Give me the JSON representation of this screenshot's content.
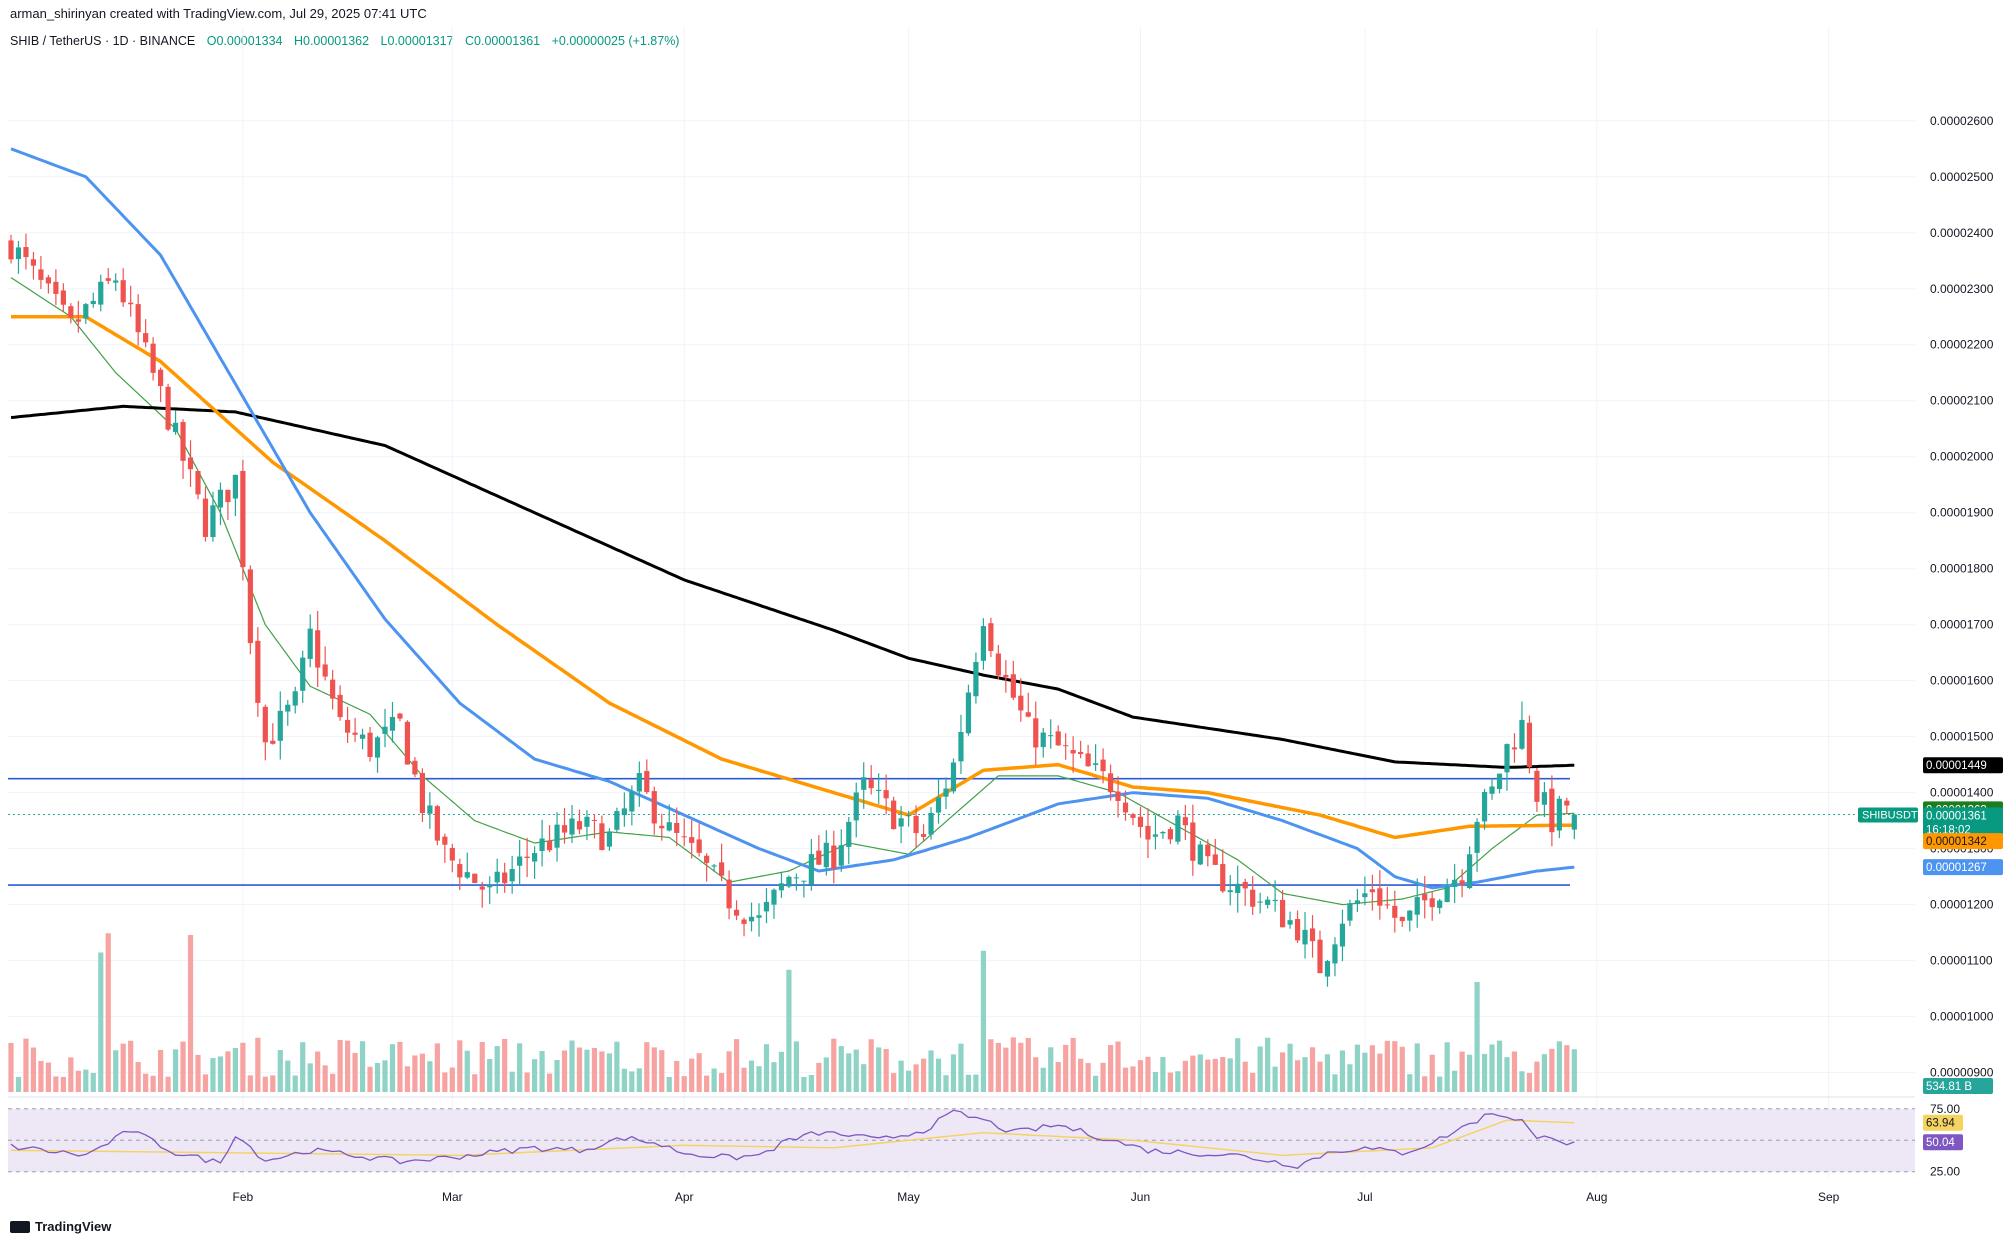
{
  "header": {
    "credit": "arman_shirinyan created with TradingView.com, Jul 29, 2025 07:41 UTC",
    "symbol_line": "SHIB / TetherUS · 1D · BINANCE",
    "open": "O0.00001334",
    "high": "H0.00001362",
    "low": "L0.00001317",
    "close": "C0.00001361",
    "change": "+0.00000025 (+1.87%)"
  },
  "footer": {
    "brand": "TradingView"
  },
  "colors": {
    "up": "#26a69a",
    "down": "#ef5350",
    "up_vol": "#8fd3c7",
    "down_vol": "#f6a3a2",
    "ma_black": "#000000",
    "ma_orange": "#ff9800",
    "ma_blue": "#4d94f0",
    "ma_green": "#43a047",
    "hline": "#2a5bd7",
    "rsi_line": "#7e57c2",
    "rsi_ma": "#f4d35e",
    "rsi_band": "#ede7f6"
  },
  "chart_data": {
    "type": "candlestick",
    "symbol": "SHIBUSDT",
    "x_ticks": [
      "Feb",
      "Mar",
      "Apr",
      "May",
      "Jun",
      "Jul",
      "Aug",
      "Sep"
    ],
    "y_ticks": [
      "0.00002600",
      "0.00002500",
      "0.00002400",
      "0.00002300",
      "0.00002200",
      "0.00002100",
      "0.00002000",
      "0.00001900",
      "0.00001800",
      "0.00001700",
      "0.00001600",
      "0.00001500",
      "0.00001400",
      "0.00001300",
      "0.00001200",
      "0.00001100",
      "0.00001000",
      "0.00000900"
    ],
    "ylim": [
      8.6e-06,
      2.73e-05
    ],
    "horizontal_lines": [
      1.425e-05,
      1.235e-05
    ],
    "price_tags": {
      "ma200": "0.00001449",
      "ma20": "0.00001363",
      "last_symbol": "SHIBUSDT",
      "last_price": "0.00001361",
      "countdown": "16:18:02",
      "ma100": "0.00001342",
      "ma50": "0.00001267",
      "volume": "534.81 B"
    },
    "rsi": {
      "upper": "75.00",
      "lower": "25.00",
      "ma_value": "63.94",
      "value": "50.04",
      "ylim": [
        20,
        82
      ]
    },
    "start_date": "2025-01-01",
    "close_knots": [
      [
        0,
        23.8
      ],
      [
        8,
        22.3
      ],
      [
        14,
        23.2
      ],
      [
        20,
        21.1
      ],
      [
        26,
        18.8
      ],
      [
        30,
        19.6
      ],
      [
        32,
        16.8
      ],
      [
        34,
        14.9
      ],
      [
        38,
        15.6
      ],
      [
        40,
        16.8
      ],
      [
        44,
        15.2
      ],
      [
        48,
        14.8
      ],
      [
        52,
        15.2
      ],
      [
        55,
        13.8
      ],
      [
        58,
        12.9
      ],
      [
        64,
        12.2
      ],
      [
        70,
        13.0
      ],
      [
        76,
        13.4
      ],
      [
        80,
        13.2
      ],
      [
        84,
        14.1
      ],
      [
        88,
        13.3
      ],
      [
        92,
        12.8
      ],
      [
        96,
        12.1
      ],
      [
        100,
        11.7
      ],
      [
        104,
        12.5
      ],
      [
        110,
        12.9
      ],
      [
        114,
        14.1
      ],
      [
        118,
        13.6
      ],
      [
        122,
        13.2
      ],
      [
        126,
        14.5
      ],
      [
        130,
        17.2
      ],
      [
        132,
        16.3
      ],
      [
        136,
        15.1
      ],
      [
        140,
        14.8
      ],
      [
        144,
        14.4
      ],
      [
        148,
        14.1
      ],
      [
        152,
        13.2
      ],
      [
        156,
        13.5
      ],
      [
        160,
        12.6
      ],
      [
        164,
        12.3
      ],
      [
        168,
        12.0
      ],
      [
        172,
        11.6
      ],
      [
        175,
        10.9
      ],
      [
        178,
        11.8
      ],
      [
        182,
        12.3
      ],
      [
        186,
        11.6
      ],
      [
        190,
        12.2
      ],
      [
        194,
        12.6
      ],
      [
        196,
        13.6
      ],
      [
        198,
        14.0
      ],
      [
        200,
        14.8
      ],
      [
        202,
        15.2
      ],
      [
        204,
        14.0
      ],
      [
        206,
        13.5
      ],
      [
        208,
        13.8
      ],
      [
        209,
        13.61
      ]
    ],
    "ma200": [
      [
        0,
        20.7
      ],
      [
        15,
        20.9
      ],
      [
        30,
        20.8
      ],
      [
        50,
        20.2
      ],
      [
        70,
        19.0
      ],
      [
        90,
        17.8
      ],
      [
        110,
        16.9
      ],
      [
        120,
        16.4
      ],
      [
        130,
        16.1
      ],
      [
        140,
        15.85
      ],
      [
        150,
        15.35
      ],
      [
        170,
        14.95
      ],
      [
        185,
        14.55
      ],
      [
        200,
        14.45
      ],
      [
        209,
        14.49
      ]
    ],
    "ma100": [
      [
        0,
        22.5
      ],
      [
        10,
        22.5
      ],
      [
        20,
        21.7
      ],
      [
        35,
        19.9
      ],
      [
        50,
        18.5
      ],
      [
        65,
        17.0
      ],
      [
        80,
        15.6
      ],
      [
        95,
        14.6
      ],
      [
        110,
        14.0
      ],
      [
        120,
        13.6
      ],
      [
        130,
        14.4
      ],
      [
        140,
        14.5
      ],
      [
        150,
        14.1
      ],
      [
        160,
        14.0
      ],
      [
        175,
        13.6
      ],
      [
        185,
        13.2
      ],
      [
        195,
        13.4
      ],
      [
        209,
        13.42
      ]
    ],
    "ma50": [
      [
        0,
        25.5
      ],
      [
        10,
        25.0
      ],
      [
        20,
        23.6
      ],
      [
        30,
        21.3
      ],
      [
        40,
        19.0
      ],
      [
        50,
        17.1
      ],
      [
        60,
        15.6
      ],
      [
        70,
        14.6
      ],
      [
        80,
        14.2
      ],
      [
        90,
        13.6
      ],
      [
        100,
        13.0
      ],
      [
        108,
        12.6
      ],
      [
        118,
        12.8
      ],
      [
        128,
        13.2
      ],
      [
        140,
        13.8
      ],
      [
        150,
        14.0
      ],
      [
        160,
        13.9
      ],
      [
        170,
        13.5
      ],
      [
        180,
        13.0
      ],
      [
        185,
        12.5
      ],
      [
        190,
        12.3
      ],
      [
        196,
        12.4
      ],
      [
        204,
        12.6
      ],
      [
        209,
        12.67
      ]
    ],
    "ma20": [
      [
        0,
        23.2
      ],
      [
        8,
        22.5
      ],
      [
        14,
        21.5
      ],
      [
        22,
        20.5
      ],
      [
        28,
        19.0
      ],
      [
        34,
        17.0
      ],
      [
        40,
        15.9
      ],
      [
        48,
        15.4
      ],
      [
        55,
        14.3
      ],
      [
        62,
        13.5
      ],
      [
        70,
        13.1
      ],
      [
        80,
        13.3
      ],
      [
        88,
        13.2
      ],
      [
        96,
        12.4
      ],
      [
        104,
        12.6
      ],
      [
        112,
        13.1
      ],
      [
        120,
        12.9
      ],
      [
        126,
        13.6
      ],
      [
        132,
        14.3
      ],
      [
        140,
        14.3
      ],
      [
        148,
        14.0
      ],
      [
        156,
        13.4
      ],
      [
        164,
        12.8
      ],
      [
        170,
        12.2
      ],
      [
        178,
        12.0
      ],
      [
        186,
        12.1
      ],
      [
        192,
        12.3
      ],
      [
        198,
        13.0
      ],
      [
        204,
        13.6
      ],
      [
        209,
        13.63
      ]
    ],
    "rsi_knots": [
      [
        0,
        45
      ],
      [
        10,
        38
      ],
      [
        16,
        58
      ],
      [
        22,
        40
      ],
      [
        28,
        32
      ],
      [
        30,
        55
      ],
      [
        34,
        34
      ],
      [
        40,
        42
      ],
      [
        46,
        38
      ],
      [
        52,
        33
      ],
      [
        58,
        36
      ],
      [
        64,
        40
      ],
      [
        70,
        44
      ],
      [
        76,
        42
      ],
      [
        82,
        52
      ],
      [
        86,
        48
      ],
      [
        90,
        40
      ],
      [
        96,
        36
      ],
      [
        100,
        38
      ],
      [
        104,
        50
      ],
      [
        108,
        56
      ],
      [
        112,
        54
      ],
      [
        116,
        50
      ],
      [
        122,
        58
      ],
      [
        126,
        72
      ],
      [
        130,
        66
      ],
      [
        134,
        56
      ],
      [
        140,
        62
      ],
      [
        146,
        52
      ],
      [
        152,
        42
      ],
      [
        158,
        40
      ],
      [
        164,
        38
      ],
      [
        168,
        34
      ],
      [
        172,
        30
      ],
      [
        176,
        40
      ],
      [
        180,
        44
      ],
      [
        186,
        40
      ],
      [
        190,
        48
      ],
      [
        194,
        60
      ],
      [
        198,
        72
      ],
      [
        202,
        66
      ],
      [
        204,
        50
      ],
      [
        206,
        54
      ],
      [
        208,
        48
      ],
      [
        209,
        50
      ]
    ],
    "rsi_ma_knots": [
      [
        0,
        42
      ],
      [
        30,
        40
      ],
      [
        60,
        38
      ],
      [
        90,
        46
      ],
      [
        110,
        44
      ],
      [
        130,
        56
      ],
      [
        150,
        50
      ],
      [
        170,
        38
      ],
      [
        190,
        44
      ],
      [
        200,
        66
      ],
      [
        209,
        63.9
      ]
    ]
  }
}
